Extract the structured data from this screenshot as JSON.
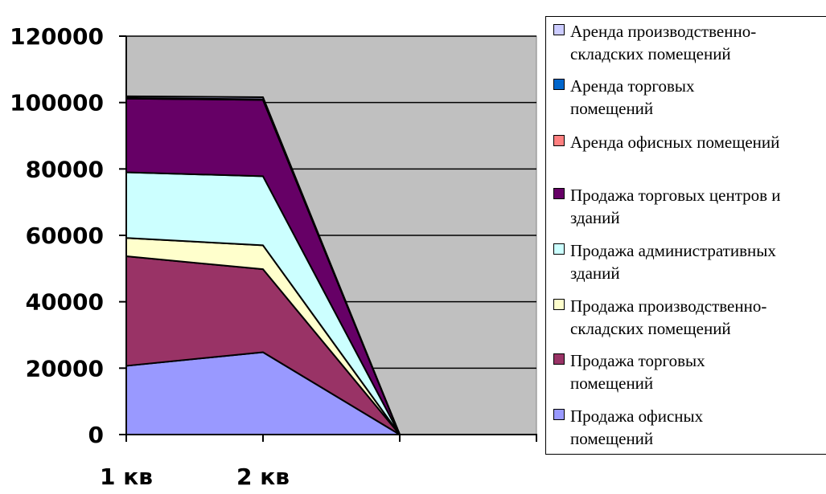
{
  "chart_data": {
    "type": "area",
    "stacked": true,
    "categories": [
      "1 кв",
      "2 кв",
      "",
      ""
    ],
    "category_labels_shown": [
      "1 кв",
      "2 кв"
    ],
    "ylim": [
      0,
      120000
    ],
    "yticks": [
      "0",
      "20000",
      "40000",
      "60000",
      "80000",
      "100000",
      "120000"
    ],
    "ytick_values": [
      0,
      20000,
      40000,
      60000,
      80000,
      100000,
      120000
    ],
    "plot_background": "#c0c0c0",
    "grid": true,
    "legend_position": "right",
    "series": [
      {
        "name": "Продажа офисных помещений",
        "color": "#9999ff",
        "values": [
          20700,
          24800,
          0,
          0
        ]
      },
      {
        "name": "Продажа торговых помещений",
        "color": "#993366",
        "values": [
          33000,
          25000,
          0,
          0
        ]
      },
      {
        "name": "Продажа производственно-складских помещений",
        "color": "#ffffcc",
        "values": [
          5500,
          7200,
          0,
          0
        ]
      },
      {
        "name": "Продажа административных зданий",
        "color": "#ccffff",
        "values": [
          19800,
          20800,
          0,
          0
        ]
      },
      {
        "name": "Продажа торговых центров и зданий",
        "color": "#660066",
        "values": [
          22200,
          23000,
          0,
          0
        ]
      },
      {
        "name": "Аренда офисных помещений",
        "color": "#ff8080",
        "values": [
          100,
          100,
          0,
          0
        ]
      },
      {
        "name": "Аренда торговых помещений",
        "color": "#0066cc",
        "values": [
          100,
          100,
          0,
          0
        ]
      },
      {
        "name": "Аренда производственно-складских помещений",
        "color": "#ccccff",
        "values": [
          500,
          600,
          0,
          0
        ]
      }
    ]
  },
  "legend": {
    "items": [
      {
        "color": "#ccccff",
        "lines": [
          "Аренда производственно-",
          "складских помещений"
        ]
      },
      {
        "color": "#0066cc",
        "lines": [
          "Аренда торговых",
          "помещений"
        ]
      },
      {
        "color": "#ff8080",
        "lines": [
          "Аренда офисных помещений"
        ]
      },
      {
        "color": "#660066",
        "lines": [
          "Продажа торговых центров и",
          "зданий"
        ]
      },
      {
        "color": "#ccffff",
        "lines": [
          "Продажа административных",
          "зданий"
        ]
      },
      {
        "color": "#ffffcc",
        "lines": [
          "Продажа производственно-",
          "складских помещений"
        ]
      },
      {
        "color": "#993366",
        "lines": [
          "Продажа торговых",
          "помещений"
        ]
      },
      {
        "color": "#9999ff",
        "lines": [
          "Продажа офисных",
          "помещений"
        ]
      }
    ]
  }
}
